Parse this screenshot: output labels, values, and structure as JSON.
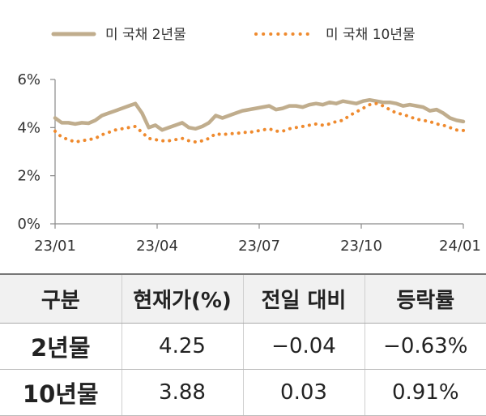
{
  "chart_data": {
    "type": "line",
    "title": "",
    "xlabel": "",
    "ylabel": "",
    "ylim": [
      0,
      6
    ],
    "y_ticks": [
      0,
      2,
      4,
      6
    ],
    "y_tick_labels": [
      "0%",
      "2%",
      "4%",
      "6%"
    ],
    "x_tick_labels": [
      "23/01",
      "23/04",
      "23/07",
      "23/10",
      "24/01"
    ],
    "legend_position": "top",
    "series": [
      {
        "name": "미 국채 2년물",
        "color": "#c0ad8d",
        "style": "solid",
        "values": [
          4.4,
          4.2,
          4.2,
          4.15,
          4.2,
          4.18,
          4.3,
          4.5,
          4.6,
          4.7,
          4.8,
          4.9,
          5.0,
          4.6,
          4.0,
          4.1,
          3.9,
          4.0,
          4.1,
          4.2,
          4.0,
          3.95,
          4.05,
          4.2,
          4.5,
          4.4,
          4.5,
          4.6,
          4.7,
          4.75,
          4.8,
          4.85,
          4.9,
          4.75,
          4.8,
          4.9,
          4.9,
          4.85,
          4.95,
          5.0,
          4.95,
          5.05,
          5.0,
          5.1,
          5.05,
          5.0,
          5.1,
          5.15,
          5.1,
          5.05,
          5.05,
          5.0,
          4.9,
          4.95,
          4.9,
          4.85,
          4.7,
          4.75,
          4.6,
          4.4,
          4.3,
          4.25
        ]
      },
      {
        "name": "미 국채 10년물",
        "color": "#ef8a2e",
        "style": "dotted",
        "values": [
          3.85,
          3.6,
          3.5,
          3.4,
          3.45,
          3.5,
          3.55,
          3.7,
          3.8,
          3.9,
          3.95,
          4.0,
          4.05,
          3.8,
          3.55,
          3.5,
          3.45,
          3.45,
          3.5,
          3.55,
          3.45,
          3.4,
          3.45,
          3.55,
          3.75,
          3.7,
          3.75,
          3.75,
          3.8,
          3.8,
          3.85,
          3.9,
          3.95,
          3.85,
          3.85,
          3.95,
          4.0,
          4.05,
          4.1,
          4.15,
          4.1,
          4.15,
          4.25,
          4.3,
          4.5,
          4.65,
          4.8,
          4.95,
          5.0,
          4.9,
          4.75,
          4.6,
          4.55,
          4.45,
          4.35,
          4.3,
          4.25,
          4.15,
          4.1,
          4.0,
          3.9,
          3.88
        ]
      }
    ]
  },
  "table": {
    "headers": [
      "구분",
      "현재가(%)",
      "전일 대비",
      "등락률"
    ],
    "rows": [
      [
        "2년물",
        "4.25",
        "−0.04",
        "−0.63%"
      ],
      [
        "10년물",
        "3.88",
        "0.03",
        "0.91%"
      ]
    ]
  }
}
